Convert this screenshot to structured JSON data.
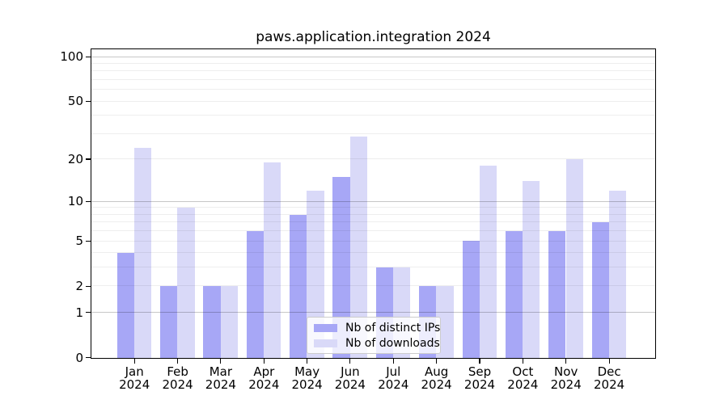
{
  "title": "paws.application.integration 2024",
  "legend": {
    "items": [
      {
        "label": "Nb of distinct IPs"
      },
      {
        "label": "Nb of downloads"
      }
    ]
  },
  "x_axis": {
    "months": [
      "Jan",
      "Feb",
      "Mar",
      "Apr",
      "May",
      "Jun",
      "Jul",
      "Aug",
      "Sep",
      "Oct",
      "Nov",
      "Dec"
    ],
    "year": "2024"
  },
  "y_axis": {
    "tick_labels": [
      "0",
      "1",
      "2",
      "5",
      "10",
      "20",
      "50",
      "100"
    ]
  },
  "chart_data": {
    "type": "bar",
    "title": "paws.application.integration 2024",
    "categories": [
      "Jan 2024",
      "Feb 2024",
      "Mar 2024",
      "Apr 2024",
      "May 2024",
      "Jun 2024",
      "Jul 2024",
      "Aug 2024",
      "Sep 2024",
      "Oct 2024",
      "Nov 2024",
      "Dec 2024"
    ],
    "series": [
      {
        "name": "Nb of distinct IPs",
        "color": "#a7a7f6",
        "values": [
          4,
          2,
          2,
          6,
          8,
          15,
          3,
          2,
          5,
          6,
          6,
          7
        ]
      },
      {
        "name": "Nb of downloads",
        "color": "#d9d9f8",
        "values": [
          24,
          9,
          2,
          19,
          12,
          29,
          3,
          2,
          18,
          14,
          20,
          12
        ]
      }
    ],
    "yscale": "log1p",
    "ylabel": "",
    "xlabel": "",
    "y_ticks": [
      0,
      1,
      2,
      5,
      10,
      20,
      50,
      100
    ],
    "y_minor_gridlines": [
      3,
      4,
      6,
      7,
      8,
      9,
      30,
      40,
      60,
      70,
      80,
      90
    ],
    "y_decade_gridlines": [
      1,
      10,
      100
    ],
    "ylim": [
      0,
      112
    ],
    "grid": "horizontal",
    "legend_position": "lower center",
    "bar_grouping": "side-by-side"
  },
  "colors": {
    "distinct_ips": "#a7a7f6",
    "downloads": "#d9d9f8",
    "grid_minor": "#ececec",
    "grid_decade": "#c8c8c8",
    "axis": "#000000",
    "background": "#ffffff"
  }
}
